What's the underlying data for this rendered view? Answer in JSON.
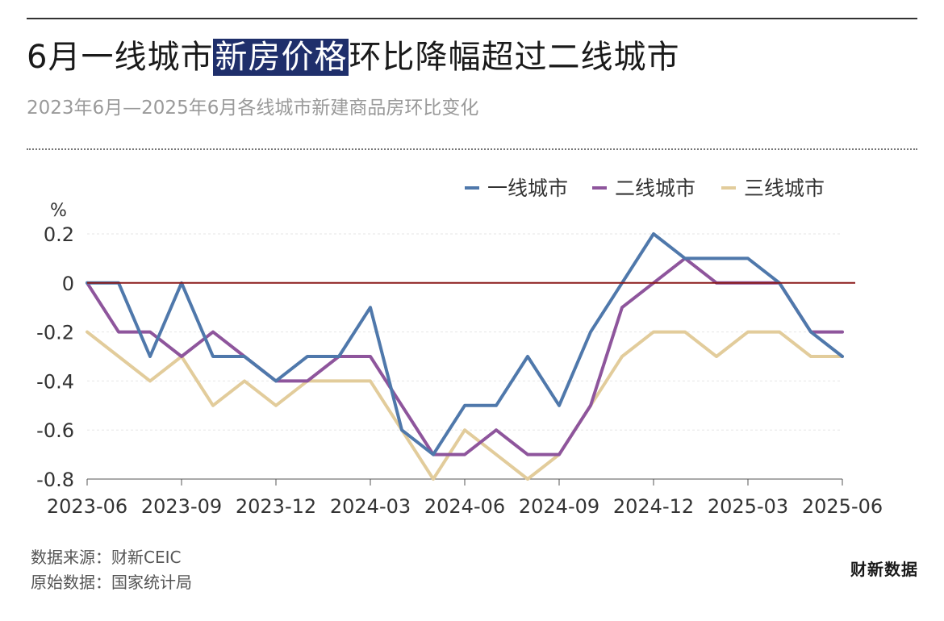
{
  "header": {
    "title_prefix": "6月一线城市",
    "title_highlight": "新房价格",
    "title_suffix": "环比降幅超过二线城市",
    "subtitle": "2023年6月—2025年6月各线城市新建商品房环比变化"
  },
  "footer": {
    "source": "数据来源：财新CEIC",
    "original": "原始数据：国家统计局",
    "brand": "财新数据"
  },
  "colors": {
    "tier1": "#4f78ab",
    "tier2": "#8e559c",
    "tier3": "#e2cc9b",
    "zero_line": "#8b1a1a",
    "accent_title": "#1f2f6b"
  },
  "chart_data": {
    "type": "line",
    "title": "6月一线城市新房价格环比降幅超过二线城市",
    "subtitle": "2023年6月—2025年6月各线城市新建商品房环比变化",
    "ylabel": "%",
    "xlabel": "",
    "ylim": [
      -0.8,
      0.2
    ],
    "yticks": [
      0.2,
      0,
      -0.2,
      -0.4,
      -0.6,
      -0.8
    ],
    "ytick_labels": [
      "0.2",
      "0",
      "-0.2",
      "-0.4",
      "-0.6",
      "-0.8"
    ],
    "x": [
      "2023-06",
      "2023-07",
      "2023-08",
      "2023-09",
      "2023-10",
      "2023-11",
      "2023-12",
      "2024-01",
      "2024-02",
      "2024-03",
      "2024-04",
      "2024-05",
      "2024-06",
      "2024-07",
      "2024-08",
      "2024-09",
      "2024-10",
      "2024-11",
      "2024-12",
      "2025-01",
      "2025-02",
      "2025-03",
      "2025-04",
      "2025-05",
      "2025-06"
    ],
    "xtick_labels": [
      "2023-06",
      "2023-09",
      "2023-12",
      "2024-03",
      "2024-06",
      "2024-09",
      "2024-12",
      "2025-03",
      "2025-06"
    ],
    "xtick_index": [
      0,
      3,
      6,
      9,
      12,
      15,
      18,
      21,
      24
    ],
    "grid": true,
    "legend_position": "top-right",
    "series": [
      {
        "name": "一线城市",
        "color": "#4f78ab",
        "values": [
          0.0,
          0.0,
          -0.3,
          0.0,
          -0.3,
          -0.3,
          -0.4,
          -0.3,
          -0.3,
          -0.1,
          -0.6,
          -0.7,
          -0.5,
          -0.5,
          -0.3,
          -0.5,
          -0.2,
          0.0,
          0.2,
          0.1,
          0.1,
          0.1,
          0.0,
          -0.2,
          -0.3
        ]
      },
      {
        "name": "二线城市",
        "color": "#8e559c",
        "values": [
          0.0,
          -0.2,
          -0.2,
          -0.3,
          -0.2,
          -0.3,
          -0.4,
          -0.4,
          -0.3,
          -0.3,
          -0.5,
          -0.7,
          -0.7,
          -0.6,
          -0.7,
          -0.7,
          -0.5,
          -0.1,
          0.0,
          0.1,
          0.0,
          0.0,
          0.0,
          -0.2,
          -0.2
        ]
      },
      {
        "name": "三线城市",
        "color": "#e2cc9b",
        "values": [
          -0.2,
          -0.3,
          -0.4,
          -0.3,
          -0.5,
          -0.4,
          -0.5,
          -0.4,
          -0.4,
          -0.4,
          -0.6,
          -0.8,
          -0.6,
          -0.7,
          -0.8,
          -0.7,
          -0.5,
          -0.3,
          -0.2,
          -0.2,
          -0.3,
          -0.2,
          -0.2,
          -0.3,
          -0.3
        ]
      }
    ]
  }
}
